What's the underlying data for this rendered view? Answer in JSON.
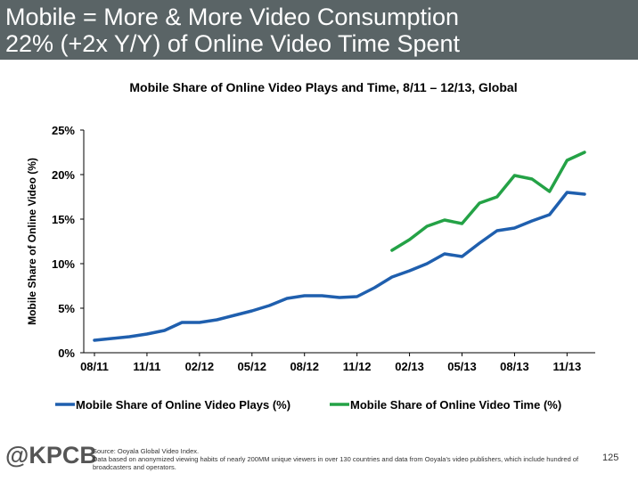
{
  "header": {
    "line1": "Mobile = More & More Video Consumption",
    "line2": "22% (+2x Y/Y) of Online Video Time Spent"
  },
  "chart_data": {
    "type": "line",
    "title": "Mobile Share of Online Video Plays and Time, 8/11 – 12/13, Global",
    "xlabel": "",
    "ylabel": "Mobile Share of Online Video (%)",
    "ylim": [
      0,
      25
    ],
    "y_ticks": [
      "0%",
      "5%",
      "10%",
      "15%",
      "20%",
      "25%"
    ],
    "x_tick_labels": [
      "08/11",
      "11/11",
      "02/12",
      "05/12",
      "08/12",
      "11/12",
      "02/13",
      "05/13",
      "08/13",
      "11/13"
    ],
    "x_months": [
      "08/11",
      "09/11",
      "10/11",
      "11/11",
      "12/11",
      "01/12",
      "02/12",
      "03/12",
      "04/12",
      "05/12",
      "06/12",
      "07/12",
      "08/12",
      "09/12",
      "10/12",
      "11/12",
      "12/12",
      "01/13",
      "02/13",
      "03/13",
      "04/13",
      "05/13",
      "06/13",
      "07/13",
      "08/13",
      "09/13",
      "10/13",
      "11/13",
      "12/13"
    ],
    "grid": false,
    "legend": "bottom",
    "series": [
      {
        "name": "Mobile Share of Online Video Plays (%)",
        "color": "#1f5fae",
        "start_index": 0,
        "values": [
          1.4,
          1.6,
          1.8,
          2.1,
          2.5,
          3.4,
          3.4,
          3.7,
          4.2,
          4.7,
          5.3,
          6.1,
          6.4,
          6.4,
          6.2,
          6.3,
          7.3,
          8.5,
          9.2,
          10.0,
          11.1,
          10.8,
          12.3,
          13.7,
          14.0,
          14.8,
          15.5,
          18.0,
          17.8
        ]
      },
      {
        "name": "Mobile Share of Online Video Time (%)",
        "color": "#24a246",
        "start_index": 17,
        "values": [
          11.5,
          12.7,
          14.2,
          14.9,
          14.5,
          16.8,
          17.5,
          19.9,
          19.5,
          18.1,
          21.6,
          22.5
        ]
      }
    ]
  },
  "footer": {
    "logo": "@KPCB",
    "source_line1": "Source: Ooyala Global Video Index.",
    "source_line2": "Data based on anonymized viewing habits of nearly 200MM unique viewers in over 130 countries and data from Ooyala's video publishers, which include hundred of broadcasters and operators.",
    "page_number": "125"
  }
}
